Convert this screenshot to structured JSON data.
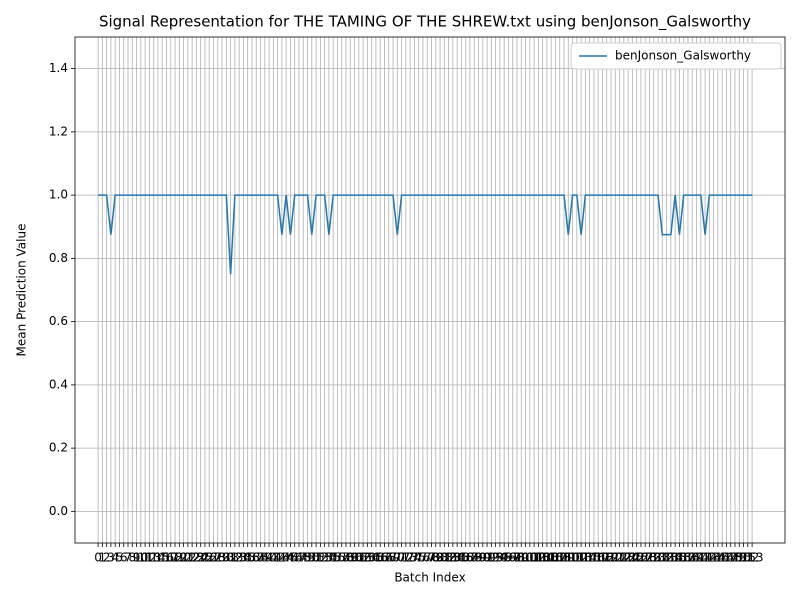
{
  "chart_data": {
    "type": "line",
    "title": "Signal Representation for THE TAMING OF THE SHREW.txt using benJonson_Galsworthy",
    "xlabel": "Batch Index",
    "ylabel": "Mean Prediction Value",
    "x": [
      0,
      1,
      2,
      3,
      4,
      5,
      6,
      7,
      8,
      9,
      10,
      11,
      12,
      13,
      14,
      15,
      16,
      17,
      18,
      19,
      20,
      21,
      22,
      23,
      24,
      25,
      26,
      27,
      28,
      29,
      30,
      31,
      32,
      33,
      34,
      35,
      36,
      37,
      38,
      39,
      40,
      41,
      42,
      43,
      44,
      45,
      46,
      47,
      48,
      49,
      50,
      51,
      52,
      53,
      54,
      55,
      56,
      57,
      58,
      59,
      60,
      61,
      62,
      63,
      64,
      65,
      66,
      67,
      68,
      69,
      70,
      71,
      72,
      73,
      74,
      75,
      76,
      77,
      78,
      79,
      80,
      81,
      82,
      83,
      84,
      85,
      86,
      87,
      88,
      89,
      90,
      91,
      92,
      93,
      94,
      95,
      96,
      97,
      98,
      99,
      100,
      101,
      102,
      103,
      104,
      105,
      106,
      107,
      108,
      109,
      110,
      111,
      112,
      113,
      114,
      115,
      116,
      117,
      118,
      119,
      120,
      121,
      122,
      123,
      124,
      125,
      126,
      127,
      128,
      129,
      130,
      131,
      132,
      133,
      134,
      135,
      136,
      137,
      138,
      139,
      140,
      141,
      142,
      143,
      144,
      145,
      146,
      147,
      148,
      149,
      150,
      151,
      152,
      153
    ],
    "series": [
      {
        "name": "benJonson_Galsworthy",
        "color": "#1f77b4",
        "values": [
          1,
          1,
          1,
          0.875,
          1,
          1,
          1,
          1,
          1,
          1,
          1,
          1,
          1,
          1,
          1,
          1,
          1,
          1,
          1,
          1,
          1,
          1,
          1,
          1,
          1,
          1,
          1,
          1,
          1,
          1,
          1,
          0.75,
          1,
          1,
          1,
          1,
          1,
          1,
          1,
          1,
          1,
          1,
          1,
          0.875,
          1,
          0.875,
          1,
          1,
          1,
          1,
          0.875,
          1,
          1,
          1,
          0.875,
          1,
          1,
          1,
          1,
          1,
          1,
          1,
          1,
          1,
          1,
          1,
          1,
          1,
          1,
          1,
          0.875,
          1,
          1,
          1,
          1,
          1,
          1,
          1,
          1,
          1,
          1,
          1,
          1,
          1,
          1,
          1,
          1,
          1,
          1,
          1,
          1,
          1,
          1,
          1,
          1,
          1,
          1,
          1,
          1,
          1,
          1,
          1,
          1,
          1,
          1,
          1,
          1,
          1,
          1,
          1,
          0.875,
          1,
          1,
          0.875,
          1,
          1,
          1,
          1,
          1,
          1,
          1,
          1,
          1,
          1,
          1,
          1,
          1,
          1,
          1,
          1,
          1,
          1,
          0.875,
          0.875,
          0.875,
          1,
          0.875,
          1,
          1,
          1,
          1,
          1,
          0.875,
          1,
          1,
          1,
          1,
          1,
          1,
          1,
          1,
          1,
          1,
          1
        ]
      }
    ],
    "xlim": [
      -5.4,
      160.7
    ],
    "xticks": [
      0,
      1,
      2,
      3,
      4,
      5,
      6,
      7,
      8,
      9,
      10,
      11,
      12,
      13,
      14,
      15,
      16,
      17,
      18,
      19,
      20,
      21,
      22,
      23,
      24,
      25,
      26,
      27,
      28,
      29,
      30,
      31,
      32,
      33,
      34,
      35,
      36,
      37,
      38,
      39,
      40,
      41,
      42,
      43,
      44,
      45,
      46,
      47,
      48,
      49,
      50,
      51,
      52,
      53,
      54,
      55,
      56,
      57,
      58,
      59,
      60,
      61,
      62,
      63,
      64,
      65,
      66,
      67,
      68,
      69,
      70,
      71,
      72,
      73,
      74,
      75,
      76,
      77,
      78,
      79,
      80,
      81,
      82,
      83,
      84,
      85,
      86,
      87,
      88,
      89,
      90,
      91,
      92,
      93,
      94,
      95,
      96,
      97,
      98,
      99,
      100,
      101,
      102,
      103,
      104,
      105,
      106,
      107,
      108,
      109,
      110,
      111,
      112,
      113,
      114,
      115,
      116,
      117,
      118,
      119,
      120,
      121,
      122,
      123,
      124,
      125,
      126,
      127,
      128,
      129,
      130,
      131,
      132,
      133,
      134,
      135,
      136,
      137,
      138,
      139,
      140,
      141,
      142,
      143,
      144,
      145,
      146,
      147,
      148,
      149,
      150,
      151,
      152,
      153
    ],
    "ylim": [
      -0.1,
      1.5
    ],
    "yticks": [
      {
        "value": 0,
        "label": "0.0"
      },
      0.2,
      0.4,
      0.6,
      0.8,
      {
        "value": 1,
        "label": "1.0"
      },
      1.2,
      1.4
    ],
    "grid": true,
    "legend": "upper right"
  }
}
